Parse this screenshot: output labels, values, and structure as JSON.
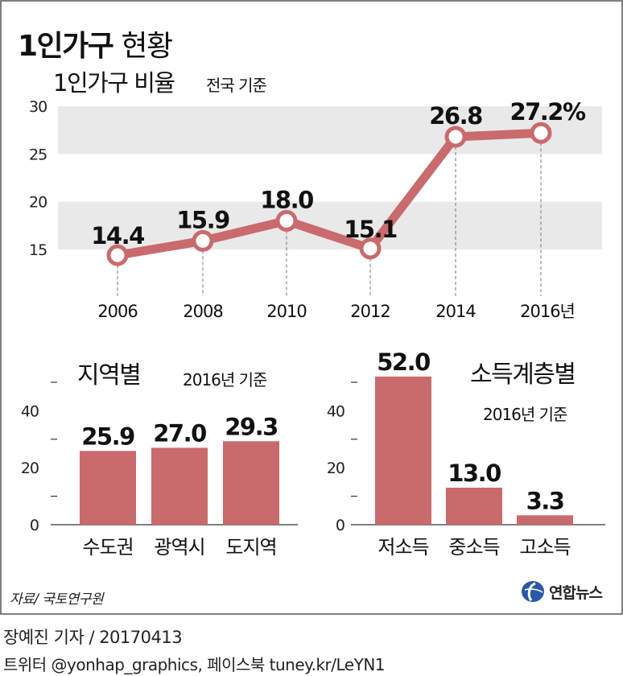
{
  "header": {
    "title_bold": "1인가구",
    "title_light": "현황"
  },
  "chart_data": [
    {
      "type": "line",
      "title": "1인가구 비율",
      "subtitle": "전국 기준",
      "x": [
        "2006",
        "2008",
        "2010",
        "2012",
        "2014",
        "2016년"
      ],
      "values": [
        14.4,
        15.9,
        18.0,
        15.1,
        26.8,
        27.2
      ],
      "data_labels": [
        "14.4",
        "15.9",
        "18.0",
        "15.1",
        "26.8",
        "27.2%"
      ],
      "yticks": [
        "15",
        "20",
        "25",
        "30"
      ],
      "ylim": [
        15,
        30
      ],
      "color": "#c96a6d",
      "band_color": "#e9e9e9"
    },
    {
      "type": "bar",
      "title": "지역별",
      "subtitle": "2016년 기준",
      "categories": [
        "수도권",
        "광역시",
        "도지역"
      ],
      "values": [
        25.9,
        27.0,
        29.3
      ],
      "data_labels": [
        "25.9",
        "27.0",
        "29.3"
      ],
      "yticks": [
        "0",
        "20",
        "40"
      ],
      "ylim": [
        0,
        50
      ],
      "color": "#c96a6d"
    },
    {
      "type": "bar",
      "title": "소득계층별",
      "subtitle": "2016년 기준",
      "categories": [
        "저소득",
        "중소득",
        "고소득"
      ],
      "values": [
        52.0,
        13.0,
        3.3
      ],
      "data_labels": [
        "52.0",
        "13.0",
        "3.3"
      ],
      "yticks": [
        "0",
        "20",
        "40"
      ],
      "ylim": [
        0,
        50
      ],
      "color": "#c96a6d"
    }
  ],
  "footer": {
    "source": "자료/ 국토연구원",
    "logo_text": "연합뉴스",
    "credit": "장예진 기자 / 20170413",
    "social": "트위터 @yonhap_graphics, 페이스북 tuney.kr/LeYN1"
  }
}
